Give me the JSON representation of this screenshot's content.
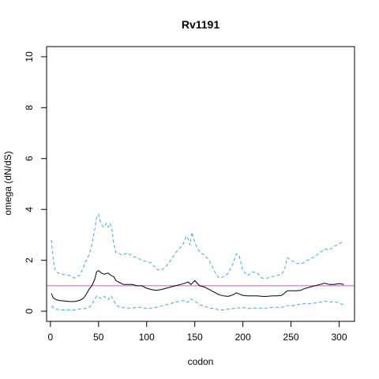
{
  "chart_data": {
    "type": "line",
    "title": "Rv1191",
    "xlabel": "codon",
    "ylabel": "omega (dN/dS)",
    "xlim": [
      -4,
      316
    ],
    "ylim": [
      -0.4,
      10.4
    ],
    "x_ticks": [
      0,
      50,
      100,
      150,
      200,
      250,
      300
    ],
    "y_ticks": [
      0,
      2,
      4,
      6,
      8,
      10
    ],
    "grid": false,
    "legend": "none",
    "reference_line": {
      "y": 1,
      "color": "#c060c0"
    },
    "colors": {
      "estimate": "#000000",
      "bounds": "#3aa8e0"
    },
    "series": [
      {
        "role": "estimate",
        "style": "solid",
        "x": [
          1,
          3,
          6,
          10,
          15,
          20,
          25,
          30,
          34,
          37,
          40,
          43,
          46,
          48,
          50,
          53,
          56,
          60,
          63,
          66,
          68,
          72,
          76,
          80,
          85,
          90,
          95,
          100,
          105,
          110,
          115,
          120,
          125,
          130,
          135,
          140,
          143,
          146,
          150,
          155,
          160,
          165,
          170,
          175,
          180,
          185,
          190,
          193,
          196,
          200,
          205,
          210,
          215,
          220,
          225,
          230,
          235,
          240,
          243,
          246,
          250,
          255,
          260,
          265,
          270,
          275,
          280,
          285,
          290,
          295,
          300,
          305
        ],
        "y": [
          0.7,
          0.52,
          0.45,
          0.42,
          0.4,
          0.38,
          0.38,
          0.42,
          0.5,
          0.65,
          0.85,
          1.0,
          1.25,
          1.55,
          1.6,
          1.5,
          1.45,
          1.5,
          1.4,
          1.35,
          1.2,
          1.12,
          1.05,
          1.05,
          1.05,
          1.0,
          1.0,
          0.9,
          0.85,
          0.82,
          0.85,
          0.9,
          0.95,
          1.0,
          1.05,
          1.1,
          1.15,
          1.05,
          1.2,
          1.0,
          0.95,
          0.85,
          0.75,
          0.65,
          0.6,
          0.58,
          0.65,
          0.72,
          0.68,
          0.62,
          0.6,
          0.6,
          0.6,
          0.58,
          0.58,
          0.6,
          0.6,
          0.62,
          0.7,
          0.8,
          0.8,
          0.8,
          0.82,
          0.9,
          0.95,
          1.0,
          1.05,
          1.1,
          1.05,
          1.05,
          1.08,
          1.05
        ]
      },
      {
        "role": "upper bound",
        "style": "dashed",
        "x": [
          1,
          3,
          5,
          8,
          12,
          16,
          20,
          25,
          30,
          33,
          36,
          40,
          43,
          46,
          48,
          50,
          52,
          55,
          58,
          60,
          62,
          64,
          66,
          68,
          70,
          75,
          80,
          85,
          90,
          95,
          100,
          105,
          110,
          115,
          120,
          125,
          130,
          135,
          138,
          141,
          143,
          145,
          147,
          150,
          153,
          156,
          160,
          165,
          170,
          175,
          180,
          185,
          190,
          193,
          196,
          200,
          205,
          210,
          215,
          220,
          225,
          230,
          235,
          240,
          243,
          246,
          250,
          255,
          260,
          265,
          270,
          275,
          280,
          285,
          290,
          295,
          300,
          305
        ],
        "y": [
          2.8,
          2.0,
          1.6,
          1.5,
          1.45,
          1.42,
          1.4,
          1.3,
          1.4,
          1.6,
          1.9,
          2.2,
          2.6,
          3.2,
          3.7,
          3.8,
          3.5,
          3.3,
          3.45,
          3.3,
          3.45,
          3.2,
          2.6,
          2.3,
          2.3,
          2.2,
          2.3,
          2.15,
          2.1,
          2.0,
          1.95,
          1.9,
          1.65,
          1.6,
          1.75,
          2.0,
          2.3,
          2.5,
          2.65,
          2.95,
          2.85,
          2.6,
          3.1,
          2.7,
          2.45,
          2.3,
          2.2,
          2.0,
          1.6,
          1.3,
          1.35,
          1.5,
          1.9,
          2.25,
          2.2,
          1.6,
          1.4,
          1.55,
          1.5,
          1.3,
          1.3,
          1.35,
          1.4,
          1.45,
          1.6,
          2.1,
          2.0,
          1.9,
          1.85,
          1.95,
          2.05,
          2.15,
          2.3,
          2.45,
          2.4,
          2.55,
          2.65,
          2.75
        ]
      },
      {
        "role": "lower bound",
        "style": "dashed",
        "x": [
          1,
          5,
          10,
          15,
          20,
          25,
          30,
          35,
          40,
          43,
          46,
          48,
          50,
          53,
          56,
          60,
          63,
          66,
          68,
          72,
          76,
          80,
          85,
          90,
          95,
          100,
          105,
          110,
          115,
          120,
          125,
          130,
          135,
          140,
          143,
          146,
          150,
          155,
          160,
          165,
          170,
          175,
          180,
          185,
          190,
          193,
          196,
          200,
          205,
          210,
          215,
          220,
          225,
          230,
          235,
          240,
          243,
          246,
          250,
          255,
          260,
          265,
          270,
          275,
          280,
          285,
          290,
          295,
          300,
          305
        ],
        "y": [
          0.2,
          0.08,
          0.05,
          0.05,
          0.05,
          0.05,
          0.08,
          0.1,
          0.15,
          0.25,
          0.45,
          0.6,
          0.55,
          0.5,
          0.58,
          0.45,
          0.6,
          0.4,
          0.25,
          0.15,
          0.15,
          0.12,
          0.12,
          0.15,
          0.15,
          0.1,
          0.12,
          0.15,
          0.2,
          0.25,
          0.3,
          0.35,
          0.4,
          0.42,
          0.35,
          0.48,
          0.4,
          0.25,
          0.2,
          0.12,
          0.1,
          0.05,
          0.05,
          0.08,
          0.1,
          0.15,
          0.12,
          0.15,
          0.1,
          0.12,
          0.12,
          0.12,
          0.12,
          0.15,
          0.15,
          0.15,
          0.18,
          0.22,
          0.2,
          0.25,
          0.28,
          0.3,
          0.3,
          0.32,
          0.35,
          0.4,
          0.35,
          0.38,
          0.32,
          0.25
        ]
      }
    ]
  }
}
